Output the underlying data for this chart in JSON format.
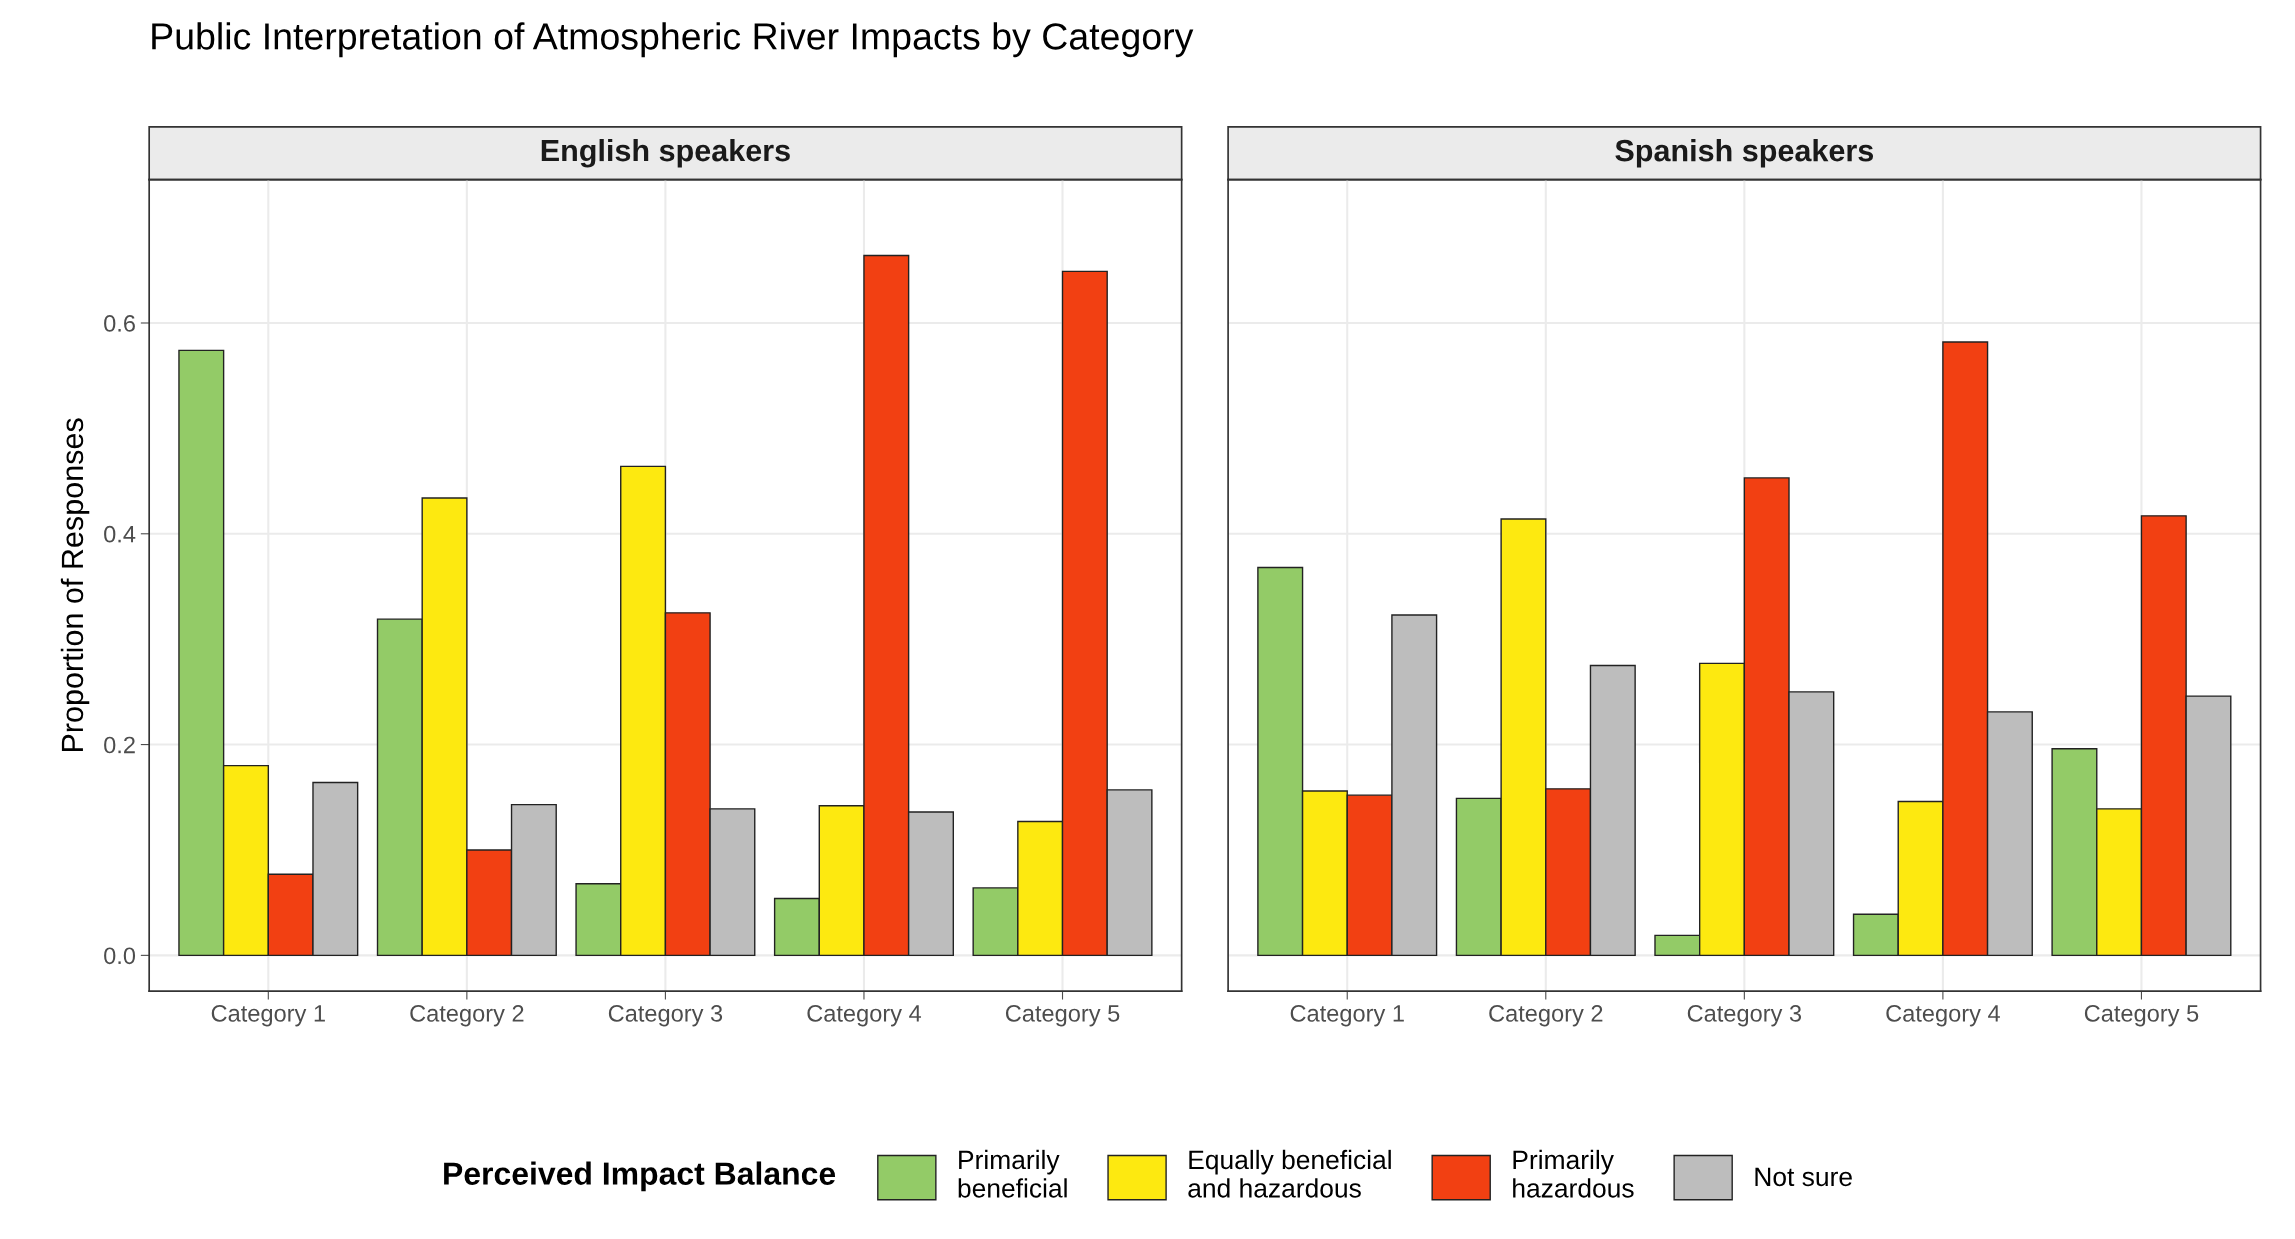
{
  "chart_data": [
    {
      "type": "bar",
      "title": "Public Interpretation of Atmospheric River Impacts by Category",
      "subtitle": "English speakers",
      "ylabel": "Proportion of Responses",
      "legend_title": "Perceived Impact Balance",
      "categories": [
        "Category 1",
        "Category 2",
        "Category 3",
        "Category 4",
        "Category 5"
      ],
      "series": [
        {
          "name": "Primarily beneficial",
          "color": "#93cb67",
          "values": [
            0.574,
            0.319,
            0.068,
            0.054,
            0.064
          ]
        },
        {
          "name": "Equally beneficial and hazardous",
          "color": "#fde910",
          "values": [
            0.18,
            0.434,
            0.464,
            0.142,
            0.127
          ]
        },
        {
          "name": "Primarily hazardous",
          "color": "#f24012",
          "values": [
            0.077,
            0.1,
            0.325,
            0.664,
            0.649
          ]
        },
        {
          "name": "Not sure",
          "color": "#bdbdbd",
          "values": [
            0.164,
            0.143,
            0.139,
            0.136,
            0.157
          ]
        }
      ],
      "ylim": [
        -0.034,
        0.736
      ],
      "yticks": [
        {
          "value": 0,
          "label": "0.0"
        },
        0.2,
        0.4,
        0.6
      ],
      "grid": true,
      "legend": "bottom"
    },
    {
      "type": "bar",
      "subtitle": "Spanish speakers",
      "categories": [
        "Category 1",
        "Category 2",
        "Category 3",
        "Category 4",
        "Category 5"
      ],
      "series": [
        {
          "color": "#93cb67",
          "values": [
            0.368,
            0.149,
            0.019,
            0.039,
            0.196
          ]
        },
        {
          "color": "#fde910",
          "values": [
            0.156,
            0.414,
            0.277,
            0.146,
            0.139
          ]
        },
        {
          "color": "#f24012",
          "values": [
            0.152,
            0.158,
            0.453,
            0.582,
            0.417
          ]
        },
        {
          "color": "#bdbdbd",
          "values": [
            0.323,
            0.275,
            0.25,
            0.231,
            0.246
          ]
        }
      ],
      "ylim": [
        -0.034,
        0.736
      ],
      "yticks": [
        0,
        0.2,
        0.4,
        0.6
      ],
      "grid": true,
      "tick_labels": "x"
    }
  ]
}
